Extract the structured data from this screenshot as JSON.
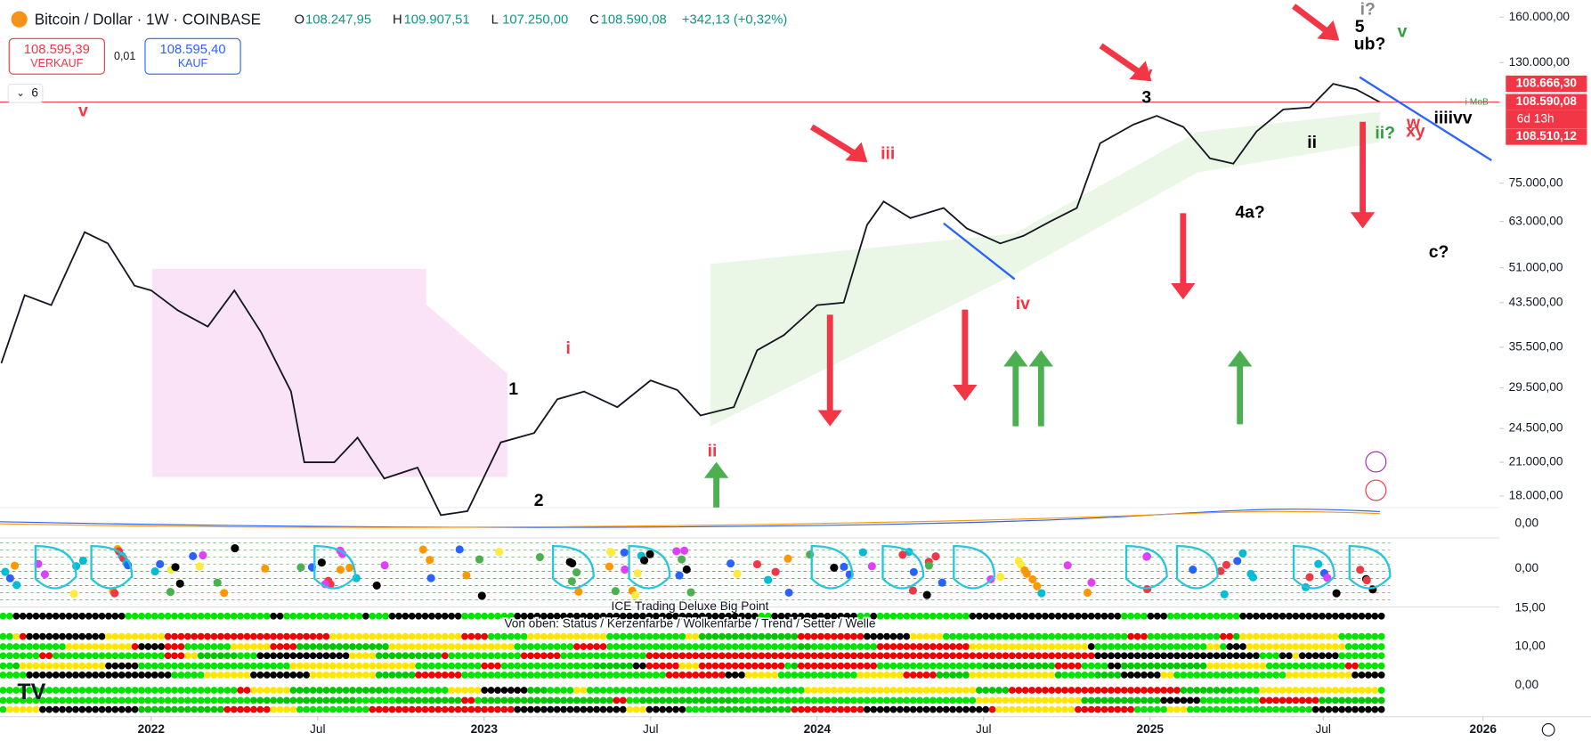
{
  "header": {
    "symbol": "Bitcoin / Dollar · 1W · COINBASE",
    "ohlc": [
      {
        "key": "O",
        "value": "108.247,95"
      },
      {
        "key": "H",
        "value": "109.907,51"
      },
      {
        "key": "L",
        "value": "107.250,00"
      },
      {
        "key": "C",
        "value": "108.590,08"
      }
    ],
    "change": "+342,13 (+0,32%)",
    "sell_price": "108.595,39",
    "sell_label": "VERKAUF",
    "spread": "0,01",
    "buy_price": "108.595,40",
    "buy_label": "KAUF",
    "indicator_count": "6"
  },
  "chart_data": {
    "type": "line",
    "log": true,
    "color": "#131722",
    "xlim": [
      2021.546,
      2026.05
    ],
    "xticks": [
      {
        "value": 2022,
        "label": "2022"
      },
      {
        "value": 2022.5,
        "label": "Jul"
      },
      {
        "value": 2023,
        "label": "2023"
      },
      {
        "value": 2023.5,
        "label": "Jul"
      },
      {
        "value": 2024,
        "label": "2024"
      },
      {
        "value": 2024.5,
        "label": "Jul"
      },
      {
        "value": 2025,
        "label": "2025"
      },
      {
        "value": 2025.52,
        "label": "Jul"
      },
      {
        "value": 2026,
        "label": "2026"
      }
    ],
    "ylim": [
      15500,
      173000
    ],
    "yticks": [
      {
        "value": 160000,
        "label": "160.000,00"
      },
      {
        "value": 130000,
        "label": "130.000,00"
      },
      {
        "value": 75000,
        "label": "75.000,00"
      },
      {
        "value": 63000,
        "label": "63.000,00"
      },
      {
        "value": 51000,
        "label": "51.000,00"
      },
      {
        "value": 43500,
        "label": "43.500,00"
      },
      {
        "value": 35500,
        "label": "35.500,00"
      },
      {
        "value": 29500,
        "label": "29.500,00"
      },
      {
        "value": 24500,
        "label": "24.500,00"
      },
      {
        "value": 21000,
        "label": "21.000,00"
      },
      {
        "value": 18000,
        "label": "18.000,00"
      }
    ],
    "series": [
      {
        "name": "Bitcoin / Dollar",
        "color": "#131722",
        "x": [
          2021.55,
          2021.62,
          2021.7,
          2021.8,
          2021.87,
          2021.95,
          2022.0,
          2022.08,
          2022.17,
          2022.25,
          2022.33,
          2022.42,
          2022.46,
          2022.55,
          2022.62,
          2022.7,
          2022.8,
          2022.87,
          2022.95,
          2023.05,
          2023.15,
          2023.22,
          2023.3,
          2023.4,
          2023.5,
          2023.58,
          2023.65,
          2023.75,
          2023.82,
          2023.9,
          2024.0,
          2024.08,
          2024.15,
          2024.2,
          2024.28,
          2024.38,
          2024.45,
          2024.55,
          2024.62,
          2024.7,
          2024.78,
          2024.85,
          2024.95,
          2025.02,
          2025.1,
          2025.18,
          2025.25,
          2025.32,
          2025.4,
          2025.48,
          2025.55,
          2025.62,
          2025.69
        ],
        "values": [
          33000,
          45000,
          43000,
          60000,
          57000,
          47000,
          46000,
          42000,
          39000,
          46000,
          38000,
          29000,
          21000,
          21000,
          23500,
          19500,
          20500,
          16500,
          16800,
          23000,
          24000,
          28000,
          29000,
          27000,
          30500,
          29200,
          26000,
          27000,
          35000,
          37500,
          43000,
          43500,
          62000,
          69000,
          64000,
          67000,
          61000,
          57000,
          59000,
          63000,
          67000,
          90000,
          98000,
          102000,
          97000,
          84000,
          82000,
          95000,
          105000,
          106000,
          118000,
          115000,
          108590.08
        ]
      }
    ],
    "markers": [
      {
        "value": 108666.3,
        "label": "108.666,30",
        "color": "#f23645"
      },
      {
        "value": 108590.08,
        "label": "108.590,08",
        "color": "#f23645"
      },
      {
        "value": 108510.12,
        "label": "108.510,12",
        "color": "#f23645"
      }
    ],
    "countdown": "6d 13h",
    "line_label": "i MoB",
    "annotations": [
      {
        "text": "v",
        "color": "#f23645"
      },
      {
        "text": "iii",
        "color": "#f23645"
      },
      {
        "text": "i",
        "color": "#f23645"
      },
      {
        "text": "ii",
        "color": "#f23645"
      },
      {
        "text": "iv",
        "color": "#f23645"
      },
      {
        "text": "1",
        "color": "#000000"
      },
      {
        "text": "2",
        "color": "#000000"
      },
      {
        "text": "3",
        "color": "#000000"
      },
      {
        "text": "4a?",
        "color": "#000000"
      },
      {
        "text": "5",
        "color": "#000000"
      },
      {
        "text": "ub?",
        "color": "#000000"
      },
      {
        "text": "i?",
        "color": "#888888"
      },
      {
        "text": "c?",
        "color": "#000000"
      },
      {
        "text": "v",
        "color": "#f23645"
      },
      {
        "text": "ii",
        "color": "#000000"
      },
      {
        "text": "v",
        "color": "#2e9e3e"
      },
      {
        "text": "ii?",
        "color": "#2e9e3e"
      },
      {
        "text": "w",
        "color": "#f23645"
      },
      {
        "text": "xy",
        "color": "#f23645"
      },
      {
        "text": "iiiivv",
        "color": "#000000"
      }
    ],
    "panes": {
      "macd_label": "0,00",
      "dots_label": "0,00",
      "indicator_name": "ICE Trading Deluxe Big Point",
      "indicator_desc": "Von oben: Status / Kerzenfarbe / Wolkenfarbe / Trend / Setter / Welle",
      "heat_ticks": [
        "15,00",
        "10,00",
        "0,00"
      ]
    }
  }
}
